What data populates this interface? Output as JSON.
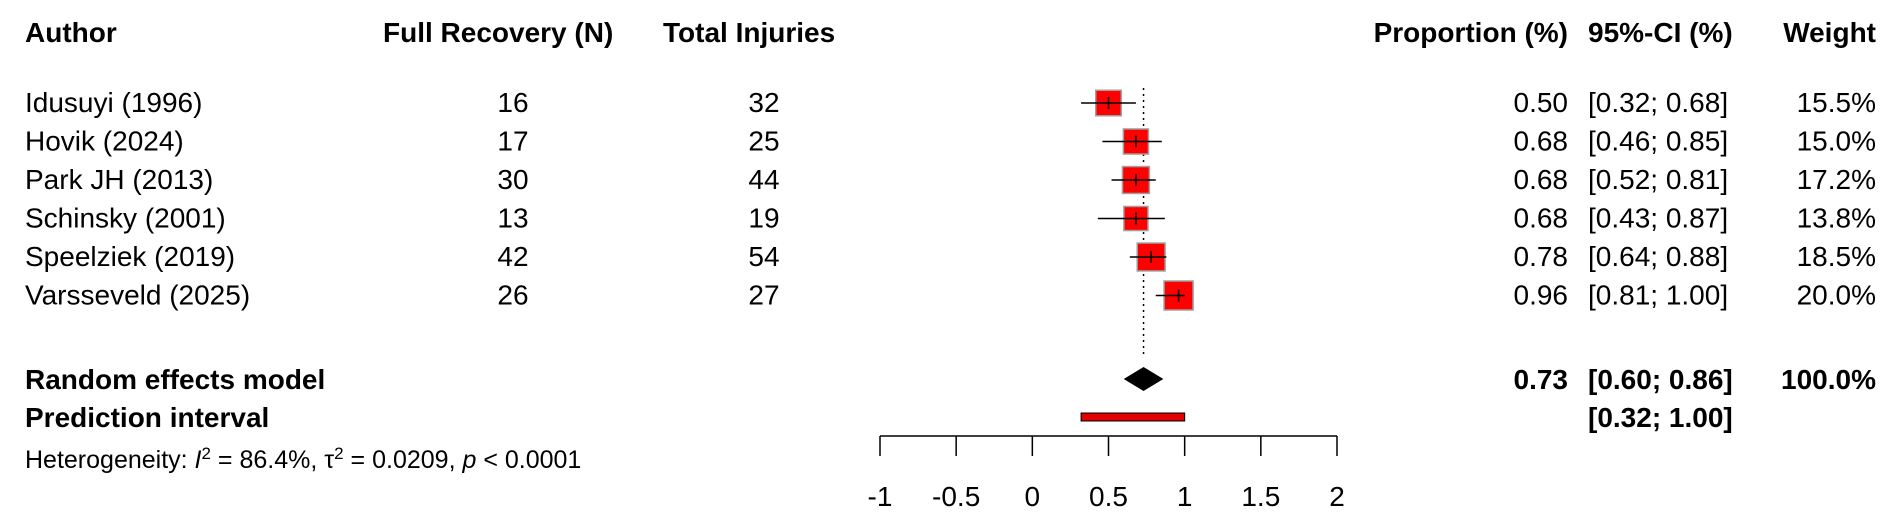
{
  "headers": {
    "author": "Author",
    "events": "Full Recovery (N)",
    "total": "Total Injuries",
    "proportion": "Proportion (%)",
    "ci": "95%-CI (%)",
    "weight": "Weight"
  },
  "studies": [
    {
      "author": "Idusuyi (1996)",
      "events": "16",
      "total": "32",
      "prop": "0.50",
      "ci": "[0.32; 0.68]",
      "weight": "15.5%"
    },
    {
      "author": "Hovik (2024)",
      "events": "17",
      "total": "25",
      "prop": "0.68",
      "ci": "[0.46; 0.85]",
      "weight": "15.0%"
    },
    {
      "author": "Park JH (2013)",
      "events": "30",
      "total": "44",
      "prop": "0.68",
      "ci": "[0.52; 0.81]",
      "weight": "17.2%"
    },
    {
      "author": "Schinsky (2001)",
      "events": "13",
      "total": "19",
      "prop": "0.68",
      "ci": "[0.43; 0.87]",
      "weight": "13.8%"
    },
    {
      "author": "Speelziek (2019)",
      "events": "42",
      "total": "54",
      "prop": "0.78",
      "ci": "[0.64; 0.88]",
      "weight": "18.5%"
    },
    {
      "author": "Varsseveld (2025)",
      "events": "26",
      "total": "27",
      "prop": "0.96",
      "ci": "[0.81; 1.00]",
      "weight": "20.0%"
    }
  ],
  "random_effects": {
    "label": "Random effects model",
    "prop": "0.73",
    "ci": "[0.60; 0.86]",
    "weight": "100.0%"
  },
  "prediction_interval": {
    "label": "Prediction interval",
    "ci": "[0.32; 1.00]"
  },
  "heterogeneity": {
    "prefix": "Heterogeneity: ",
    "i2_symbol": "I",
    "i2_value": " = 86.4%, ",
    "tau2_symbol": "τ",
    "tau2_value": " = 0.0209, ",
    "p_symbol": "p",
    "p_value": " < 0.0001"
  },
  "chart_data": {
    "type": "forest",
    "x_ticks": [
      "-1",
      "-0.5",
      "0",
      "0.5",
      "1",
      "1.5",
      "2"
    ],
    "xlim": [
      -1,
      2
    ],
    "reference_line": 0.73,
    "colors": {
      "square": "#ff0000",
      "square_border": "#a0a0a0",
      "diamond": "#000000",
      "prediction": "#e00000"
    },
    "studies": [
      {
        "author": "Idusuyi (1996)",
        "estimate": 0.5,
        "lower": 0.32,
        "upper": 0.68,
        "weight": 15.5
      },
      {
        "author": "Hovik (2024)",
        "estimate": 0.68,
        "lower": 0.46,
        "upper": 0.85,
        "weight": 15.0
      },
      {
        "author": "Park JH (2013)",
        "estimate": 0.68,
        "lower": 0.52,
        "upper": 0.81,
        "weight": 17.2
      },
      {
        "author": "Schinsky (2001)",
        "estimate": 0.68,
        "lower": 0.43,
        "upper": 0.87,
        "weight": 13.8
      },
      {
        "author": "Speelziek (2019)",
        "estimate": 0.78,
        "lower": 0.64,
        "upper": 0.88,
        "weight": 18.5
      },
      {
        "author": "Varsseveld (2025)",
        "estimate": 0.96,
        "lower": 0.81,
        "upper": 1.0,
        "weight": 20.0
      }
    ],
    "pooled": {
      "estimate": 0.73,
      "lower": 0.6,
      "upper": 0.86,
      "weight": 100.0
    },
    "prediction": {
      "lower": 0.32,
      "upper": 1.0
    }
  }
}
